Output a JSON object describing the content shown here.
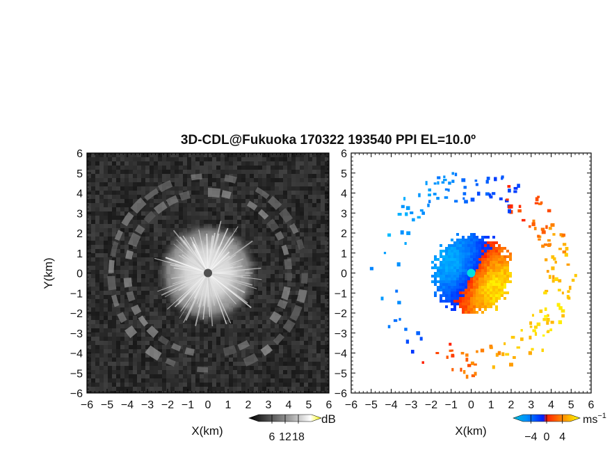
{
  "title": "3D-CDL@Fukuoka 170322 193540 PPI EL=10.0º",
  "chart_data": [
    {
      "type": "heatmap",
      "panel": "reflectivity",
      "xlabel": "X(km)",
      "ylabel": "Y(km)",
      "xlim": [
        -6,
        6
      ],
      "ylim": [
        -6,
        6
      ],
      "xticks": [
        "−6",
        "−5",
        "−4",
        "−3",
        "−2",
        "−1",
        "0",
        "1",
        "2",
        "3",
        "4",
        "5",
        "6"
      ],
      "yticks": [
        "6",
        "5",
        "4",
        "3",
        "2",
        "1",
        "0",
        "−1",
        "−2",
        "−3",
        "−4",
        "−5",
        "−6"
      ],
      "colorbar": {
        "unit": "dB",
        "ticks": [
          "6",
          "12",
          "18"
        ],
        "tick_values": [
          6,
          12,
          18
        ],
        "range": [
          0,
          24
        ],
        "colors": [
          "#000000",
          "#ffffff",
          "#ffff00"
        ]
      },
      "features": {
        "bright_disk_radius_km": 2.5,
        "arc_radius_km": [
          4.0,
          4.8
        ],
        "radar_site": [
          0,
          0
        ]
      }
    },
    {
      "type": "heatmap",
      "panel": "doppler_velocity",
      "xlabel": "X(km)",
      "ylabel": "",
      "xlim": [
        -6,
        6
      ],
      "ylim": [
        -6,
        6
      ],
      "xticks": [
        "−6",
        "−5",
        "−4",
        "−3",
        "−2",
        "−1",
        "0",
        "1",
        "2",
        "3",
        "4",
        "5",
        "6"
      ],
      "yticks": [
        "6",
        "5",
        "4",
        "3",
        "2",
        "1",
        "0",
        "−1",
        "−2",
        "−3",
        "−4",
        "−5",
        "−6"
      ],
      "colorbar": {
        "unit": "ms",
        "unit_superscript": "−1",
        "ticks": [
          "−4",
          "0",
          "4"
        ],
        "tick_values": [
          -4,
          0,
          4
        ],
        "range": [
          -6,
          6
        ],
        "colors": [
          "#00bcd4",
          "#0030ff",
          "#ff2000",
          "#ffff00"
        ]
      },
      "features": {
        "echo_radius_km": 2.0,
        "negative_sector": "west",
        "positive_sector": "east",
        "radar_site": [
          0,
          0
        ]
      }
    }
  ]
}
